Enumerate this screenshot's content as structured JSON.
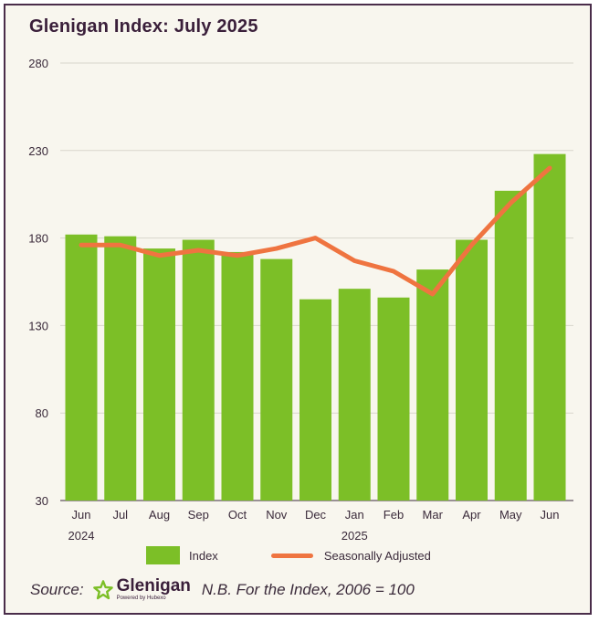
{
  "title": "Glenigan Index: July 2025",
  "chart_data": {
    "type": "bar",
    "categories": [
      "Jun",
      "Jul",
      "Aug",
      "Sep",
      "Oct",
      "Nov",
      "Dec",
      "Jan",
      "Feb",
      "Mar",
      "Apr",
      "May",
      "Jun"
    ],
    "year_labels": [
      "2024",
      "",
      "",
      "",
      "",
      "",
      "",
      "2025",
      "",
      "",
      "",
      "",
      ""
    ],
    "series": [
      {
        "name": "Index",
        "type": "bar",
        "color": "#7cbf27",
        "values": [
          182,
          181,
          174,
          179,
          172,
          168,
          145,
          151,
          146,
          162,
          179,
          207,
          228
        ]
      },
      {
        "name": "Seasonally Adjusted",
        "type": "line",
        "color": "#ef7440",
        "values": [
          176,
          176,
          170,
          173,
          170,
          174,
          180,
          167,
          161,
          148,
          176,
          200,
          220
        ]
      }
    ],
    "ylim": [
      30,
      280
    ],
    "yticks": [
      30,
      80,
      130,
      180,
      230,
      280
    ],
    "grid": true,
    "legend": "bottom"
  },
  "footer": {
    "source_label": "Source:",
    "brand_name": "Glenigan",
    "brand_tagline": "Powered by Hubexo",
    "note": "N.B. For the Index, 2006 = 100"
  }
}
